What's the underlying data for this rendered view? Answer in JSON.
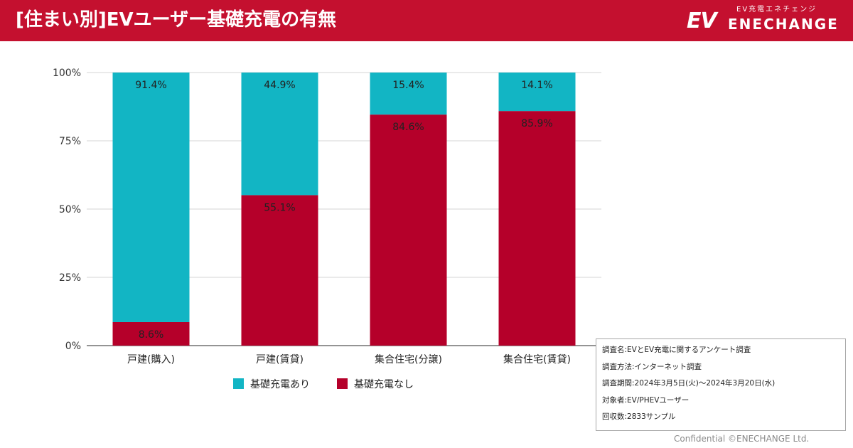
{
  "header": {
    "title": "[住まい別]EVユーザー基礎充電の有無",
    "background_color": "#c4102f"
  },
  "logo": {
    "mark": "EV",
    "tagline": "EV充電エネチェンジ",
    "name": "ENECHANGE"
  },
  "chart_data": {
    "type": "bar",
    "stacked": true,
    "title": "",
    "xlabel": "",
    "ylabel": "",
    "ylim": [
      0,
      100
    ],
    "y_ticks": [
      0,
      25,
      50,
      75,
      100
    ],
    "y_tick_labels": [
      "0%",
      "25%",
      "50%",
      "75%",
      "100%"
    ],
    "grid": true,
    "legend_position": "bottom",
    "categories": [
      "戸建(購入)",
      "戸建(賃貸)",
      "集合住宅(分譲)",
      "集合住宅(賃貸)"
    ],
    "series": [
      {
        "name": "基礎充電なし",
        "color": "#b5002a",
        "values": [
          8.6,
          55.1,
          84.6,
          85.9
        ],
        "labels": [
          "8.6%",
          "55.1%",
          "84.6%",
          "85.9%"
        ]
      },
      {
        "name": "基礎充電あり",
        "color": "#12b5c4",
        "values": [
          91.4,
          44.9,
          15.4,
          14.1
        ],
        "labels": [
          "91.4%",
          "44.9%",
          "15.4%",
          "14.1%"
        ]
      }
    ],
    "legend": [
      {
        "name": "基礎充電あり",
        "color": "#12b5c4"
      },
      {
        "name": "基礎充電なし",
        "color": "#b5002a"
      }
    ]
  },
  "survey_info": {
    "lines": [
      "調査名:EVとEV充電に関するアンケート調査",
      "調査方法:インターネット調査",
      "調査期間:2024年3月5日(火)〜2024年3月20日(水)",
      "対象者:EV/PHEVユーザー",
      "回収数:2833サンプル"
    ]
  },
  "footer": {
    "text": "Confidential ©ENECHANGE Ltd."
  }
}
